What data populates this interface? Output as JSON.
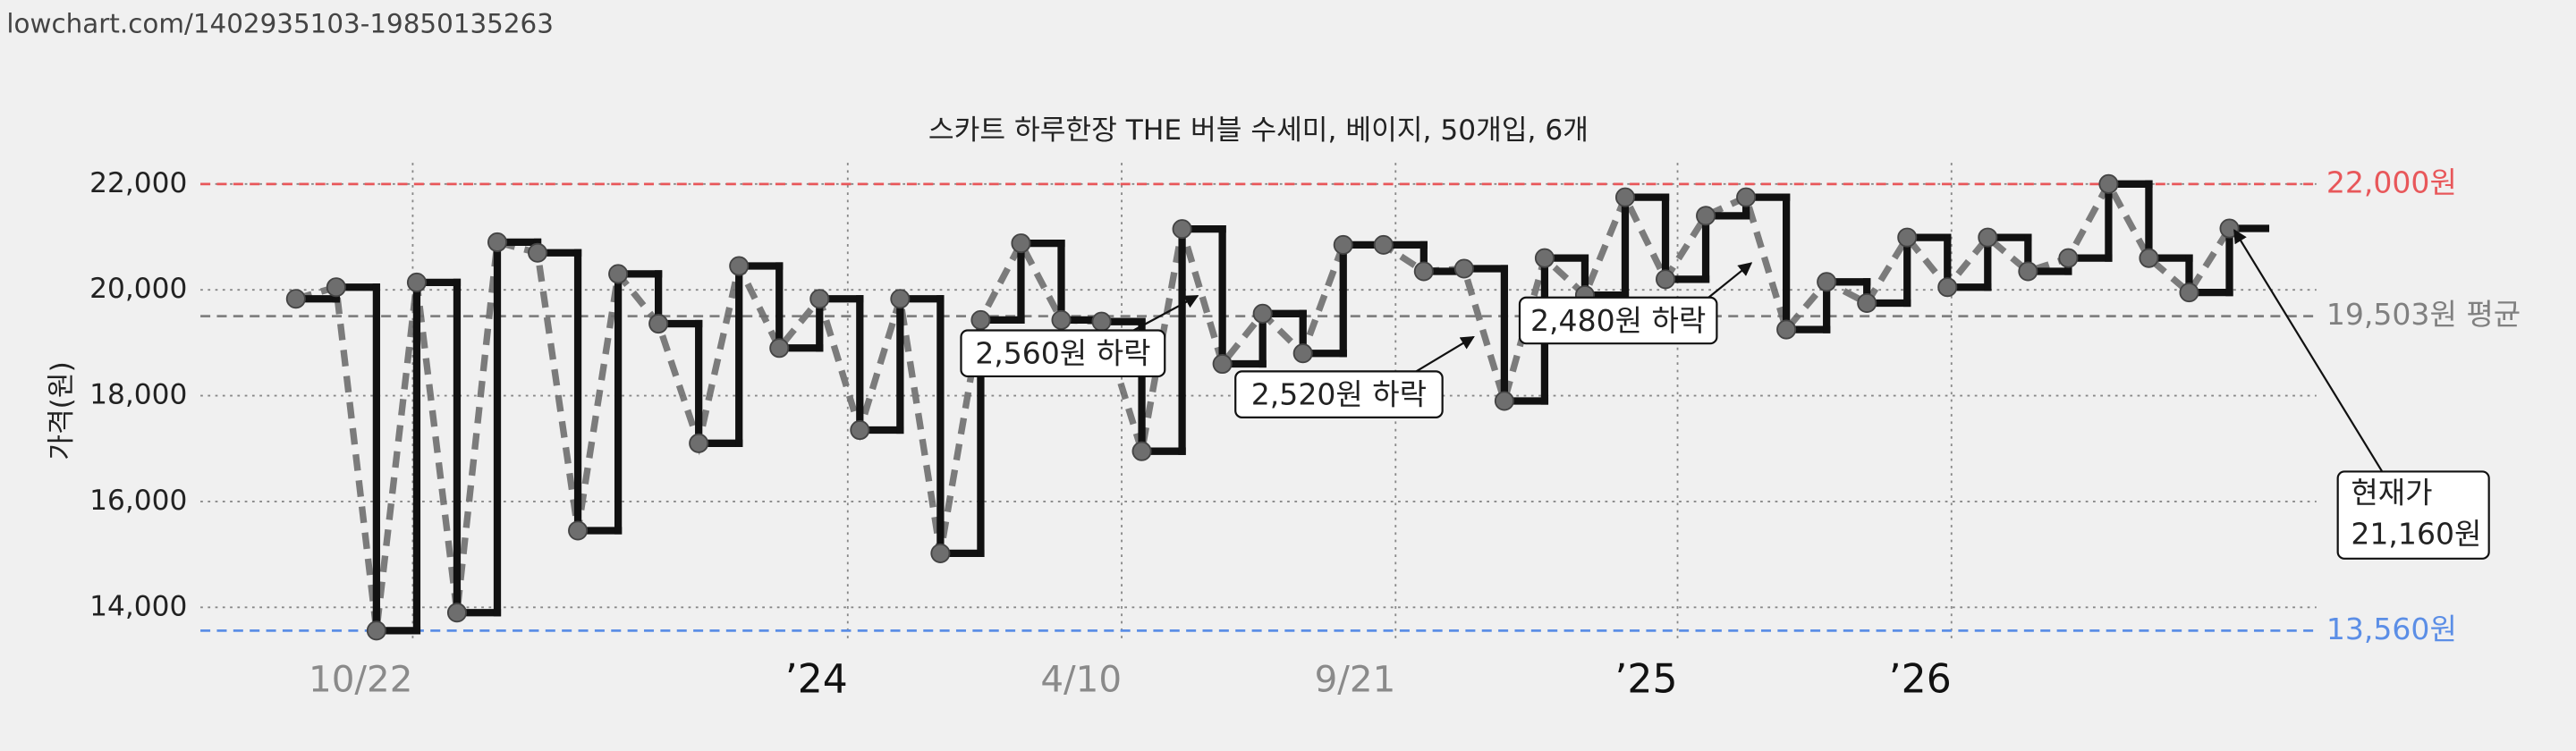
{
  "chart_data": {
    "type": "step-line",
    "source": "lowchart.com/1402935103-19850135263",
    "title": "스카트 하루한장 THE 버블 수세미, 베이지, 50개입, 6개",
    "y_label": "가격(원)",
    "x": [
      0,
      1,
      2,
      3,
      4,
      5,
      6,
      7,
      8,
      9,
      10,
      11,
      12,
      13,
      14,
      15,
      16,
      17,
      18,
      19,
      20,
      21,
      22,
      23,
      24,
      25,
      26,
      27,
      28,
      29,
      30,
      31,
      32,
      33,
      34,
      35,
      36,
      37,
      38,
      39,
      40,
      41,
      42,
      43,
      44,
      45,
      46,
      47,
      48
    ],
    "xlim": [
      -2.37,
      50.16
    ],
    "xticks": [
      {
        "value": 2.9,
        "label": "10/22"
      },
      {
        "value": 13.7,
        "label": "’24"
      },
      {
        "value": 20.5,
        "label": "4/10"
      },
      {
        "value": 27.3,
        "label": "9/21"
      },
      {
        "value": 34.3,
        "label": "’25"
      },
      {
        "value": 41.1,
        "label": "’26"
      }
    ],
    "ylim": [
      13400,
      22400
    ],
    "yticks": [
      {
        "value": 14000,
        "label": "14,000"
      },
      {
        "value": 16000,
        "label": "16,000"
      },
      {
        "value": 18000,
        "label": "18,000"
      },
      {
        "value": 20000,
        "label": "20,000"
      },
      {
        "value": 22000,
        "label": "22,000"
      }
    ],
    "grid": true,
    "series": [
      {
        "color": "#111111",
        "trend_color": "#6e6e6e",
        "values": [
          19830,
          20050,
          13560,
          20140,
          13900,
          20900,
          20700,
          15450,
          20300,
          19360,
          17100,
          20450,
          18900,
          19830,
          17350,
          19830,
          15020,
          19430,
          20880,
          19430,
          19400,
          16950,
          21150,
          18600,
          19550,
          18800,
          20850,
          20850,
          20350,
          20400,
          17900,
          20600,
          19900,
          21750,
          20200,
          21400,
          21750,
          19250,
          20150,
          19750,
          20990,
          20050,
          20990,
          20350,
          20600,
          22000,
          20600,
          19950,
          21160
        ]
      }
    ],
    "reference_lines": [
      {
        "value": 22000,
        "label": "22,000원",
        "color": "#e8575a"
      },
      {
        "value": 19503,
        "label": "19,503원 평균",
        "color": "#808080"
      },
      {
        "value": 13560,
        "label": "13,560원",
        "color": "#5b8ee6"
      }
    ],
    "annotations": [
      {
        "label": "2,560원 하락"
      },
      {
        "label": "2,520원 하락"
      },
      {
        "label": "2,480원 하락"
      },
      {
        "label": [
          "현재가",
          "21,160원"
        ]
      }
    ]
  }
}
